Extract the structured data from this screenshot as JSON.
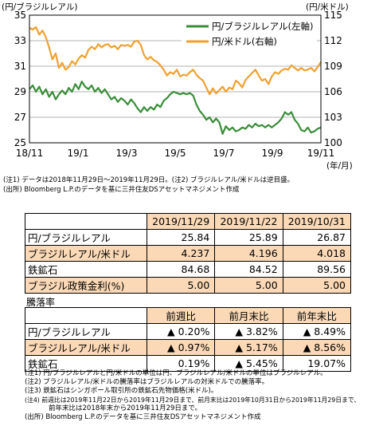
{
  "chart_data": {
    "type": "line",
    "left_axis_unit": "(円/ブラジルレアル)",
    "right_axis_unit": "(円/米ドル)",
    "x_unit": "(年/月)",
    "x_ticks": [
      "18/11",
      "19/1",
      "19/3",
      "19/5",
      "19/7",
      "19/9",
      "19/11"
    ],
    "ylim_left": [
      25,
      35
    ],
    "yticks_left": [
      "25",
      "27",
      "29",
      "31",
      "33",
      "35"
    ],
    "ylim_right": [
      100,
      115
    ],
    "yticks_right": [
      "100",
      "103",
      "106",
      "109",
      "112",
      "115"
    ],
    "grid": true,
    "legend_position": "top-right",
    "series": [
      {
        "name": "円/ブラジルレアル(左軸)",
        "axis": "left",
        "color": "#3a8d3a",
        "values": [
          29.2,
          29.5,
          29.0,
          29.4,
          28.8,
          29.2,
          28.6,
          29.0,
          28.4,
          28.8,
          29.1,
          28.8,
          29.3,
          29.0,
          29.6,
          29.2,
          29.8,
          29.4,
          29.2,
          29.5,
          29.0,
          29.3,
          28.9,
          29.2,
          28.8,
          28.4,
          28.6,
          28.2,
          28.5,
          28.3,
          28.0,
          28.4,
          28.1,
          27.7,
          27.4,
          27.8,
          27.5,
          27.8,
          27.6,
          28.0,
          27.8,
          28.3,
          28.5,
          28.8,
          29.0,
          28.9,
          28.8,
          28.9,
          28.8,
          28.9,
          28.7,
          28.0,
          27.5,
          27.2,
          26.8,
          27.0,
          26.6,
          26.9,
          26.6,
          25.7,
          26.3,
          26.0,
          26.2,
          25.9,
          26.0,
          26.2,
          26.1,
          26.4,
          26.2,
          26.5,
          26.3,
          26.4,
          26.2,
          26.4,
          26.2,
          26.4,
          26.6,
          26.9,
          27.4,
          27.2,
          27.4,
          26.8,
          26.5,
          26.0,
          25.9,
          26.2,
          25.8,
          25.9,
          26.1,
          26.2
        ]
      },
      {
        "name": "円/米ドル(右軸)",
        "axis": "right",
        "color": "#f0a030",
        "values": [
          113.5,
          113.3,
          113.6,
          112.7,
          113.2,
          112.4,
          111.2,
          109.8,
          110.5,
          108.8,
          109.4,
          108.6,
          108.9,
          109.6,
          109.2,
          109.9,
          110.3,
          110.0,
          110.9,
          111.3,
          111.0,
          111.6,
          111.2,
          111.5,
          111.6,
          111.2,
          111.4,
          111.0,
          111.5,
          111.4,
          111.5,
          111.3,
          111.9,
          112.0,
          111.5,
          110.3,
          109.8,
          110.1,
          109.7,
          109.5,
          109.1,
          108.6,
          107.9,
          108.3,
          108.1,
          108.6,
          107.8,
          108.0,
          107.9,
          108.3,
          108.6,
          108.0,
          107.6,
          107.3,
          106.5,
          105.7,
          106.4,
          105.8,
          106.2,
          106.6,
          106.0,
          106.5,
          106.3,
          107.3,
          107.0,
          106.5,
          107.4,
          107.8,
          108.2,
          108.6,
          107.9,
          107.3,
          107.5,
          106.9,
          107.8,
          108.3,
          108.1,
          108.5,
          108.7,
          108.6,
          109.1,
          108.8,
          108.5,
          108.8,
          108.5,
          108.6,
          108.8,
          108.4,
          108.9,
          109.5
        ]
      }
    ]
  },
  "chart_notes": [
    "(注1) データは2018年11月29日～2019年11月29日。(注2) ブラジルレアル/米ドルは逆目盛。",
    "(出所) Bloomberg L.P.のデータを基に三井住友DSアセットマネジメント作成"
  ],
  "table1": {
    "headers": [
      "2019/11/29",
      "2019/11/22",
      "2019/10/31"
    ],
    "rows": [
      {
        "label": "円/ブラジルレアル",
        "values": [
          "25.84",
          "25.89",
          "26.87"
        ]
      },
      {
        "label": "ブラジルレアル/米ドル",
        "values": [
          "4.237",
          "4.196",
          "4.018"
        ]
      },
      {
        "label": "鉄鉱石",
        "values": [
          "84.68",
          "84.52",
          "89.56"
        ]
      },
      {
        "label": "ブラジル政策金利(%)",
        "values": [
          "5.00",
          "5.00",
          "5.00"
        ]
      }
    ]
  },
  "table2": {
    "caption": "騰落率",
    "headers": [
      "前週比",
      "前月末比",
      "前年末比"
    ],
    "rows": [
      {
        "label": "円/ブラジルレアル",
        "values": [
          "▲ 0.20%",
          "▲ 3.82%",
          "▲ 8.49%"
        ]
      },
      {
        "label": "ブラジルレアル/米ドル",
        "values": [
          "▲ 0.97%",
          "▲ 5.17%",
          "▲ 8.56%"
        ]
      },
      {
        "label": "鉄鉱石",
        "values": [
          "0.19%",
          "▲ 5.45%",
          "19.07%"
        ]
      }
    ]
  },
  "table_notes": [
    "(注1) 円/ブラジルレアルと円/米ドルの単位は円、ブラジルレアル/米ドルの単位はブラジルレアル。",
    "(注2) ブラジルレアル/米ドルの騰落率はブラジルレアルの対米ドルでの騰落率。",
    "(注3) 鉄鉱石はシンガポール取引所の鉄鉱石先物価格(米ドル)。",
    "(注4) 前週比は2019年11月22日から2019年11月29日まで、前月末比は2019年10月31日から2019年11月29日まで、",
    "前年末比は2018年末から2019年11月29日まで。",
    "(出所) Bloomberg L.P.のデータを基に三井住友DSアセットマネジメント作成"
  ]
}
